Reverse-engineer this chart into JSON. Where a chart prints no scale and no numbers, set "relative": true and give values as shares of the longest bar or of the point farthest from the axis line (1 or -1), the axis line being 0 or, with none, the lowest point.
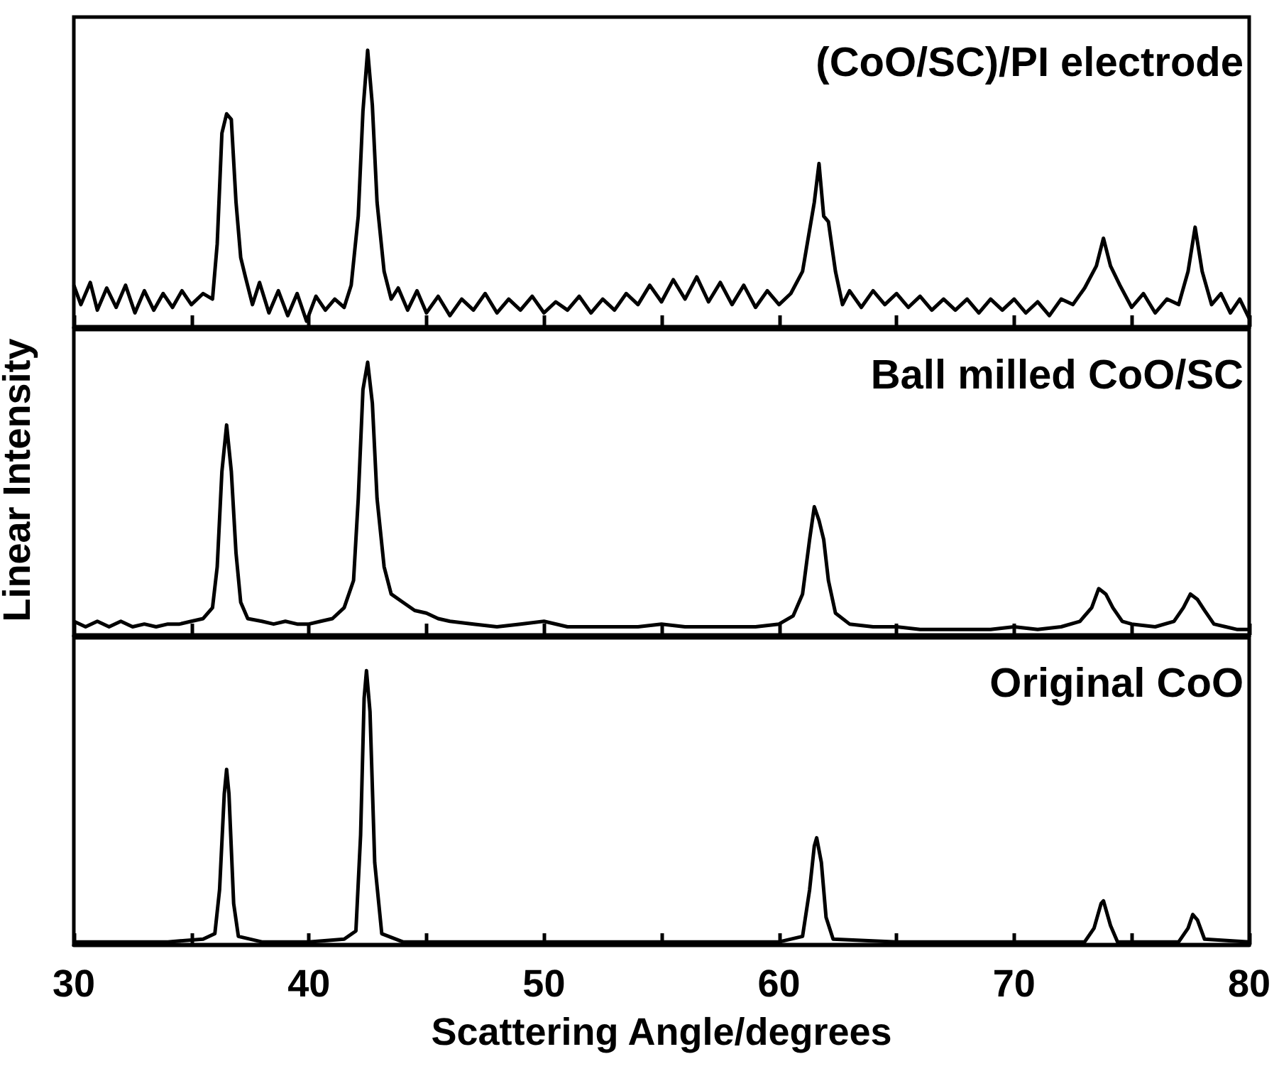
{
  "chart_data": [
    {
      "type": "line",
      "relative": true,
      "xlim": [
        30,
        80
      ],
      "marker": "none",
      "tick_labels": false,
      "xticks": [
        {
          "value": 30,
          "label": null
        },
        {
          "value": 35,
          "label": null
        },
        {
          "value": 40,
          "label": null
        },
        {
          "value": 45,
          "label": null
        },
        {
          "value": 50,
          "label": null
        },
        {
          "value": 55,
          "label": null
        },
        {
          "value": 60,
          "label": null
        },
        {
          "value": 65,
          "label": null
        },
        {
          "value": 70,
          "label": null
        },
        {
          "value": 75,
          "label": null
        },
        {
          "value": 80,
          "label": null
        }
      ],
      "annotations": [
        "(CoO/SC)/PI electrode"
      ],
      "x": [
        30,
        30.3,
        30.7,
        31,
        31.4,
        31.8,
        32.2,
        32.6,
        33,
        33.4,
        33.8,
        34.2,
        34.6,
        35,
        35.5,
        35.9,
        36.1,
        36.3,
        36.5,
        36.7,
        36.9,
        37.1,
        37.3,
        37.6,
        37.9,
        38.3,
        38.7,
        39.1,
        39.5,
        39.9,
        40.3,
        40.7,
        41.1,
        41.5,
        41.8,
        42.1,
        42.3,
        42.5,
        42.7,
        42.9,
        43.2,
        43.5,
        43.8,
        44.2,
        44.6,
        45,
        45.5,
        46,
        46.5,
        47,
        47.5,
        48,
        48.5,
        49,
        49.5,
        50,
        50.5,
        51,
        51.5,
        52,
        52.5,
        53,
        53.5,
        54,
        54.5,
        55,
        55.5,
        56,
        56.5,
        57,
        57.5,
        58,
        58.5,
        59,
        59.5,
        60,
        60.5,
        61,
        61.3,
        61.5,
        61.7,
        61.9,
        62.1,
        62.4,
        62.7,
        63,
        63.5,
        64,
        64.5,
        65,
        65.5,
        66,
        66.5,
        67,
        67.5,
        68,
        68.5,
        69,
        69.5,
        70,
        70.5,
        71,
        71.5,
        72,
        72.5,
        73,
        73.5,
        73.8,
        74.1,
        74.5,
        75,
        75.5,
        76,
        76.5,
        77,
        77.4,
        77.7,
        78,
        78.4,
        78.8,
        79.2,
        79.6,
        80
      ],
      "series": [
        {
          "color": "#000000",
          "values": [
            0.15,
            0.08,
            0.16,
            0.06,
            0.14,
            0.07,
            0.15,
            0.05,
            0.13,
            0.06,
            0.12,
            0.07,
            0.13,
            0.08,
            0.12,
            0.1,
            0.3,
            0.7,
            0.77,
            0.75,
            0.45,
            0.25,
            0.18,
            0.08,
            0.16,
            0.05,
            0.13,
            0.04,
            0.12,
            0.02,
            0.11,
            0.06,
            0.1,
            0.07,
            0.15,
            0.4,
            0.78,
            1,
            0.8,
            0.45,
            0.2,
            0.1,
            0.14,
            0.06,
            0.13,
            0.05,
            0.11,
            0.04,
            0.1,
            0.06,
            0.12,
            0.05,
            0.1,
            0.06,
            0.11,
            0.05,
            0.09,
            0.06,
            0.11,
            0.05,
            0.1,
            0.06,
            0.12,
            0.08,
            0.15,
            0.09,
            0.17,
            0.1,
            0.18,
            0.09,
            0.16,
            0.08,
            0.15,
            0.07,
            0.13,
            0.08,
            0.12,
            0.2,
            0.35,
            0.45,
            0.59,
            0.4,
            0.38,
            0.2,
            0.08,
            0.13,
            0.07,
            0.13,
            0.08,
            0.12,
            0.07,
            0.11,
            0.06,
            0.1,
            0.06,
            0.1,
            0.05,
            0.1,
            0.06,
            0.1,
            0.05,
            0.09,
            0.04,
            0.1,
            0.08,
            0.14,
            0.22,
            0.32,
            0.22,
            0.15,
            0.07,
            0.12,
            0.05,
            0.1,
            0.08,
            0.2,
            0.36,
            0.2,
            0.08,
            0.12,
            0.05,
            0.1,
            0.03
          ]
        }
      ]
    },
    {
      "type": "line",
      "relative": true,
      "xlim": [
        30,
        80
      ],
      "marker": "none",
      "tick_labels": false,
      "ylabel": "Linear Intensity",
      "xticks": [
        {
          "value": 30,
          "label": null
        },
        {
          "value": 35,
          "label": null
        },
        {
          "value": 40,
          "label": null
        },
        {
          "value": 45,
          "label": null
        },
        {
          "value": 50,
          "label": null
        },
        {
          "value": 55,
          "label": null
        },
        {
          "value": 60,
          "label": null
        },
        {
          "value": 65,
          "label": null
        },
        {
          "value": 70,
          "label": null
        },
        {
          "value": 75,
          "label": null
        },
        {
          "value": 80,
          "label": null
        }
      ],
      "annotations": [
        "Ball milled CoO/SC"
      ],
      "x": [
        30,
        30.5,
        31,
        31.5,
        32,
        32.5,
        33,
        33.5,
        34,
        34.5,
        35,
        35.5,
        35.9,
        36.1,
        36.3,
        36.5,
        36.7,
        36.9,
        37.1,
        37.4,
        38,
        38.5,
        39,
        39.5,
        40,
        40.5,
        41,
        41.5,
        41.9,
        42.1,
        42.3,
        42.5,
        42.7,
        42.9,
        43.2,
        43.5,
        44,
        44.5,
        45,
        45.5,
        46,
        47,
        48,
        49,
        50,
        51,
        52,
        53,
        54,
        55,
        56,
        57,
        58,
        59,
        60,
        60.6,
        61,
        61.3,
        61.5,
        61.7,
        61.9,
        62.1,
        62.4,
        63,
        64,
        65,
        66,
        67,
        68,
        69,
        70,
        71,
        72,
        72.8,
        73.3,
        73.6,
        73.9,
        74.2,
        74.6,
        75,
        76,
        76.8,
        77.2,
        77.5,
        77.8,
        78.1,
        78.5,
        79,
        79.5,
        80
      ],
      "series": [
        {
          "color": "#000000",
          "values": [
            0.05,
            0.03,
            0.05,
            0.03,
            0.05,
            0.03,
            0.04,
            0.03,
            0.04,
            0.04,
            0.05,
            0.06,
            0.1,
            0.25,
            0.6,
            0.77,
            0.6,
            0.3,
            0.12,
            0.06,
            0.05,
            0.04,
            0.05,
            0.04,
            0.04,
            0.05,
            0.06,
            0.1,
            0.2,
            0.5,
            0.9,
            1,
            0.85,
            0.5,
            0.25,
            0.15,
            0.12,
            0.09,
            0.08,
            0.06,
            0.05,
            0.04,
            0.03,
            0.04,
            0.05,
            0.03,
            0.03,
            0.03,
            0.03,
            0.04,
            0.03,
            0.03,
            0.03,
            0.03,
            0.04,
            0.07,
            0.15,
            0.35,
            0.47,
            0.42,
            0.35,
            0.2,
            0.08,
            0.04,
            0.03,
            0.03,
            0.02,
            0.02,
            0.02,
            0.02,
            0.03,
            0.02,
            0.03,
            0.05,
            0.1,
            0.17,
            0.15,
            0.1,
            0.05,
            0.04,
            0.03,
            0.05,
            0.1,
            0.15,
            0.13,
            0.09,
            0.04,
            0.03,
            0.02,
            0.02
          ]
        }
      ]
    },
    {
      "type": "line",
      "relative": true,
      "xlim": [
        30,
        80
      ],
      "marker": "none",
      "tick_labels": "x",
      "xlabel": "Scattering Angle/degrees",
      "xticks": [
        30,
        {
          "value": 35,
          "label": null
        },
        40,
        {
          "value": 45,
          "label": null
        },
        50,
        {
          "value": 55,
          "label": null
        },
        60,
        {
          "value": 65,
          "label": null
        },
        70,
        {
          "value": 75,
          "label": null
        },
        80
      ],
      "annotations": [
        "Original CoO"
      ],
      "x": [
        30,
        32,
        34,
        35.5,
        36,
        36.2,
        36.4,
        36.5,
        36.6,
        36.8,
        37,
        38,
        40,
        41.5,
        42,
        42.2,
        42.35,
        42.45,
        42.6,
        42.8,
        43.1,
        44,
        50,
        55,
        60,
        61,
        61.3,
        61.5,
        61.6,
        61.8,
        62,
        62.3,
        65,
        70,
        73,
        73.4,
        73.7,
        73.8,
        74.1,
        74.4,
        77,
        77.4,
        77.6,
        77.8,
        78.1,
        80
      ],
      "series": [
        {
          "color": "#000000",
          "values": [
            0.01,
            0.01,
            0.01,
            0.02,
            0.04,
            0.2,
            0.55,
            0.64,
            0.55,
            0.15,
            0.03,
            0.01,
            0.01,
            0.02,
            0.05,
            0.4,
            0.9,
            1,
            0.85,
            0.3,
            0.04,
            0.01,
            0.01,
            0.01,
            0.01,
            0.03,
            0.2,
            0.36,
            0.39,
            0.3,
            0.1,
            0.02,
            0.01,
            0.01,
            0.01,
            0.06,
            0.15,
            0.16,
            0.07,
            0.01,
            0.01,
            0.06,
            0.11,
            0.09,
            0.02,
            0.01
          ]
        }
      ]
    }
  ]
}
